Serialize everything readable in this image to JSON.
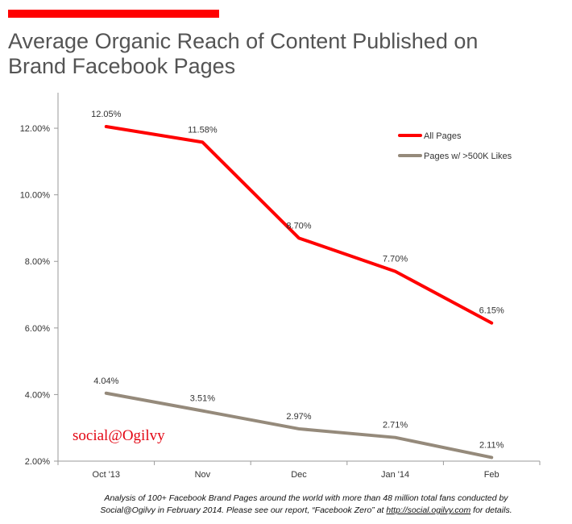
{
  "header": {
    "accent_color": "#ff0000",
    "title_line1": "Average Organic Reach of Content Published on",
    "title_line2": "Brand Facebook Pages"
  },
  "chart_data": {
    "type": "line",
    "categories": [
      "Oct '13",
      "Nov",
      "Dec",
      "Jan '14",
      "Feb"
    ],
    "series": [
      {
        "name": "All Pages",
        "color": "#ff0000",
        "values": [
          12.05,
          11.58,
          8.7,
          7.7,
          6.15
        ],
        "labels": [
          "12.05%",
          "11.58%",
          "8.70%",
          "7.70%",
          "6.15%"
        ]
      },
      {
        "name": "Pages w/ >500K Likes",
        "color": "#958a7b",
        "values": [
          4.04,
          3.51,
          2.97,
          2.71,
          2.11
        ],
        "labels": [
          "4.04%",
          "3.51%",
          "2.97%",
          "2.71%",
          "2.11%"
        ]
      }
    ],
    "ylim": [
      2,
      13
    ],
    "yticks": [
      2,
      4,
      6,
      8,
      10,
      12
    ],
    "ytick_labels": [
      "2.00%",
      "4.00%",
      "6.00%",
      "8.00%",
      "10.00%",
      "12.00%"
    ],
    "grid": false,
    "legend_position": "top-right"
  },
  "brand": "social@Ogilvy",
  "footnote": {
    "line1": "Analysis of 100+ Facebook Brand Pages around the world with more than 48 million total fans conducted by",
    "line2_before": "Social@Ogilvy in February 2014. Please see our report, “Facebook Zero” at ",
    "link": "http://social.ogilvy.com",
    "line2_after": " for details."
  }
}
